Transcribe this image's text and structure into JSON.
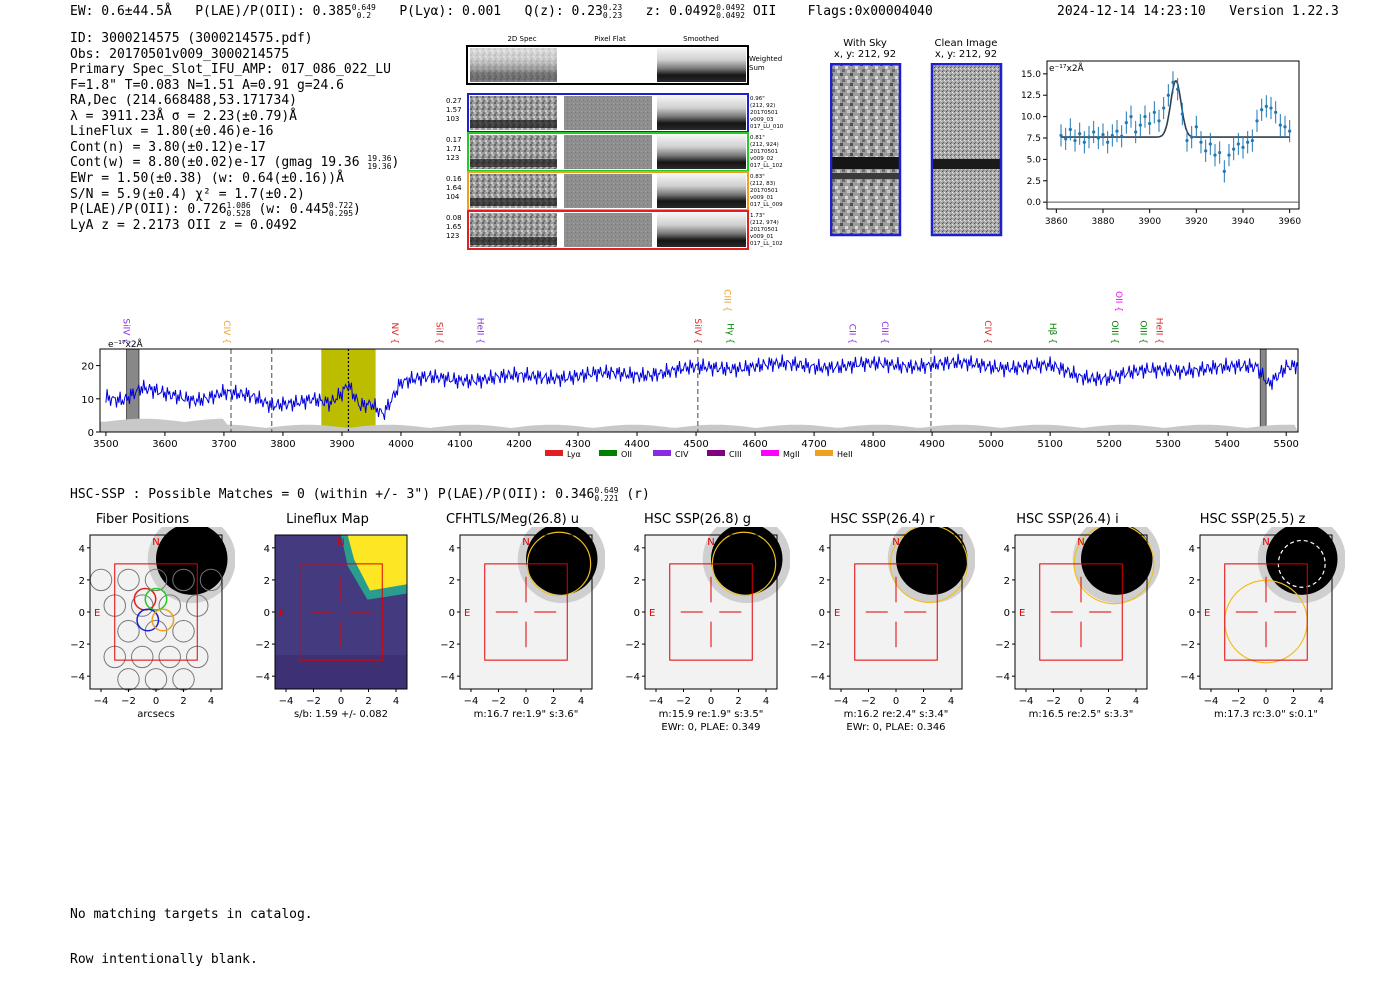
{
  "header": {
    "ew": "EW: 0.6±44.5Å",
    "plae_label": "P(LAE)/P(OII): 0.385",
    "plae_hi": "0.649",
    "plae_lo": "0.2",
    "plya": "P(Lyα): 0.001",
    "qz_label": "Q(z): 0.23",
    "qz_hi": "0.23",
    "qz_lo": "0.23",
    "z_label": "z: 0.0492",
    "z_hi": "0.0492",
    "z_lo": "0.0492",
    "z_line": "OII",
    "flags": "Flags:0x00004040",
    "timestamp": "2024-12-14 14:23:10",
    "version": "Version 1.22.3"
  },
  "info": {
    "id": "ID: 3000214575 (3000214575.pdf)",
    "obs": "Obs: 20170501v009_3000214575",
    "primary": "Primary Spec_Slot_IFU_AMP: 017_086_022_LU",
    "params": "F=1.8\"  T=0.083  N=1.51  A=0.91  g=24.6",
    "radec": "RA,Dec (214.668488,53.171734)",
    "lambda": "λ = 3911.23Å  σ = 2.23(±0.79)Å",
    "lineflux": "LineFlux = 1.80(±0.46)e-16",
    "contn": "Cont(n) = 3.80(±0.12)e-17",
    "contw": "Cont(w) = 8.80(±0.02)e-17 (gmag 19.36",
    "gmag_hi": "19.36",
    "gmag_lo": "19.36",
    "ewr": "EWr = 1.50(±0.38) (w: 0.64(±0.16))Å",
    "sn": "S/N = 5.9(±0.4)  χ² = 1.7(±0.2)",
    "plae": "P(LAE)/P(OII): 0.726",
    "plae_hi": "1.086",
    "plae_lo": "0.528",
    "plae_w": "(w: 0.445",
    "plae_w_hi": "0.722",
    "plae_w_lo": "0.295",
    "lyaz": "LyA z = 2.2173  OII z = 0.0492"
  },
  "cutouts": {
    "col_titles": [
      "2D Spec",
      "Pixel Flat",
      "Smoothed"
    ],
    "weighted": "Weighted Sum",
    "rows": [
      {
        "left": [
          "0.27",
          "1.57",
          "103"
        ],
        "right": [
          "0.96\"",
          "(212, 92)",
          "20170501",
          "v009_03",
          "017_LU_010"
        ],
        "color": "#1f1fcf"
      },
      {
        "left": [
          "0.17",
          "1.71",
          "123"
        ],
        "right": [
          "0.81\"",
          "(212, 924)",
          "20170501",
          "v009_02",
          "017_LL_102"
        ],
        "color": "#22cc22"
      },
      {
        "left": [
          "0.16",
          "1.64",
          "104"
        ],
        "right": [
          "0.83\"",
          "(212, 83)",
          "20170501",
          "v009_01",
          "017_LL_009"
        ],
        "color": "#f0a020"
      },
      {
        "left": [
          "0.08",
          "1.65",
          "123"
        ],
        "right": [
          "1.73\"",
          "(212, 974)",
          "20170501",
          "v009_01",
          "017_LL_102"
        ],
        "color": "#e02020"
      }
    ],
    "with_sky": "With Sky",
    "with_sky_xy": "x, y: 212, 92",
    "clean": "Clean Image",
    "clean_xy": "x, y: 212, 92"
  },
  "zoom_chart": {
    "ylabel": "e⁻¹⁷x2Å",
    "xticks": [
      "3860",
      "3880",
      "3900",
      "3920",
      "3940",
      "3960"
    ],
    "yticks": [
      "0.0",
      "2.5",
      "5.0",
      "7.5",
      "10.0",
      "12.5",
      "15.0"
    ]
  },
  "chart_data": [
    {
      "type": "scatter",
      "title": "",
      "xlabel": "",
      "ylabel": "e⁻¹⁷x2Å",
      "xlim": [
        3856,
        3964
      ],
      "ylim": [
        -0.8,
        16.5
      ],
      "points": [
        [
          3862,
          7.8
        ],
        [
          3864,
          7.4
        ],
        [
          3866,
          8.5
        ],
        [
          3868,
          7.2
        ],
        [
          3870,
          8.0
        ],
        [
          3872,
          7.0
        ],
        [
          3874,
          7.6
        ],
        [
          3876,
          8.2
        ],
        [
          3878,
          7.5
        ],
        [
          3880,
          7.9
        ],
        [
          3882,
          7.0
        ],
        [
          3884,
          7.8
        ],
        [
          3886,
          8.3
        ],
        [
          3888,
          7.7
        ],
        [
          3890,
          9.3
        ],
        [
          3892,
          10.0
        ],
        [
          3894,
          8.2
        ],
        [
          3896,
          9.0
        ],
        [
          3898,
          10.0
        ],
        [
          3900,
          9.2
        ],
        [
          3902,
          10.5
        ],
        [
          3904,
          9.5
        ],
        [
          3906,
          11.0
        ],
        [
          3908,
          12.5
        ],
        [
          3910,
          14.0
        ],
        [
          3912,
          13.2
        ],
        [
          3914,
          10.3
        ],
        [
          3916,
          7.2
        ],
        [
          3918,
          7.6
        ],
        [
          3920,
          8.8
        ],
        [
          3922,
          7.0
        ],
        [
          3924,
          6.0
        ],
        [
          3926,
          6.8
        ],
        [
          3928,
          5.5
        ],
        [
          3930,
          5.8
        ],
        [
          3932,
          3.6
        ],
        [
          3934,
          5.5
        ],
        [
          3936,
          6.2
        ],
        [
          3938,
          6.8
        ],
        [
          3940,
          6.4
        ],
        [
          3942,
          7.0
        ],
        [
          3944,
          7.2
        ],
        [
          3946,
          9.5
        ],
        [
          3948,
          10.8
        ],
        [
          3950,
          11.2
        ],
        [
          3952,
          11.0
        ],
        [
          3954,
          10.5
        ],
        [
          3956,
          9.0
        ],
        [
          3958,
          8.8
        ],
        [
          3960,
          8.3
        ]
      ],
      "fit": {
        "center": 3911.23,
        "sigma": 2.23,
        "continuum": 7.6,
        "peak": 14.2
      },
      "xticks": [
        3860,
        3880,
        3900,
        3920,
        3940,
        3960
      ],
      "yticks": [
        0.0,
        2.5,
        5.0,
        7.5,
        10.0,
        12.5,
        15.0
      ]
    },
    {
      "type": "line",
      "title": "",
      "ylabel": "e⁻¹⁷x2Å",
      "xlim": [
        3490,
        5520
      ],
      "ylim": [
        0,
        25
      ],
      "xticks": [
        3500,
        3600,
        3700,
        3800,
        3900,
        4000,
        4100,
        4200,
        4300,
        4400,
        4500,
        4600,
        4700,
        4800,
        4900,
        5000,
        5100,
        5200,
        5300,
        5400,
        5500
      ],
      "yticks": [
        0,
        10,
        20
      ],
      "spectrum_anchors": [
        [
          3500,
          11
        ],
        [
          3530,
          10
        ],
        [
          3560,
          13
        ],
        [
          3600,
          11
        ],
        [
          3650,
          10
        ],
        [
          3700,
          12
        ],
        [
          3750,
          10
        ],
        [
          3780,
          8
        ],
        [
          3800,
          9
        ],
        [
          3850,
          10
        ],
        [
          3880,
          8
        ],
        [
          3900,
          11
        ],
        [
          3910,
          14
        ],
        [
          3930,
          8
        ],
        [
          3950,
          9
        ],
        [
          3970,
          6
        ],
        [
          4000,
          15
        ],
        [
          4050,
          16
        ],
        [
          4100,
          16
        ],
        [
          4200,
          16.5
        ],
        [
          4300,
          17
        ],
        [
          4400,
          17.5
        ],
        [
          4500,
          19
        ],
        [
          4600,
          20
        ],
        [
          4700,
          20
        ],
        [
          4800,
          20
        ],
        [
          4900,
          20.5
        ],
        [
          5000,
          20
        ],
        [
          5100,
          19.5
        ],
        [
          5150,
          17
        ],
        [
          5200,
          16.5
        ],
        [
          5300,
          19
        ],
        [
          5400,
          19
        ],
        [
          5450,
          20
        ],
        [
          5470,
          15
        ],
        [
          5500,
          20
        ],
        [
          5520,
          20
        ]
      ],
      "highlight_band": [
        3865,
        3957
      ],
      "dashed_lines": [
        3712,
        3781,
        3911,
        4503,
        4898
      ],
      "masked_bands": [
        [
          3535,
          3556
        ],
        [
          5456,
          5466
        ]
      ],
      "line_markers": [
        {
          "label": "SiIV",
          "x": 3530,
          "color": "#8a2be2",
          "row": 0
        },
        {
          "label": "CIV",
          "x": 3700,
          "color": "#f0a020",
          "row": 0
        },
        {
          "label": "NV",
          "x": 3985,
          "color": "#e02020",
          "row": 0
        },
        {
          "label": "SiII",
          "x": 4060,
          "color": "#e02020",
          "row": 0
        },
        {
          "label": "HeII",
          "x": 4130,
          "color": "#8a2be2",
          "row": 0
        },
        {
          "label": "CIII",
          "x": 4548,
          "color": "#f0a020",
          "row": 1
        },
        {
          "label": "SiIV",
          "x": 4498,
          "color": "#e02020",
          "row": 0
        },
        {
          "label": "Hγ",
          "x": 4553,
          "color": "#008000",
          "row": 0
        },
        {
          "label": "CII",
          "x": 4760,
          "color": "#8a2be2",
          "row": 0
        },
        {
          "label": "CIII",
          "x": 4815,
          "color": "#8a2be2",
          "row": 0
        },
        {
          "label": "CIV",
          "x": 4990,
          "color": "#e02020",
          "row": 0
        },
        {
          "label": "Hβ",
          "x": 5100,
          "color": "#008000",
          "row": 0
        },
        {
          "label": "OII",
          "x": 5212,
          "color": "#ff00ff",
          "row": 1
        },
        {
          "label": "OIII",
          "x": 5205,
          "color": "#008000",
          "row": 0
        },
        {
          "label": "OIII",
          "x": 5253,
          "color": "#008000",
          "row": 0
        },
        {
          "label": "HeII",
          "x": 5280,
          "color": "#e02020",
          "row": 0
        }
      ],
      "legend": [
        {
          "label": "Lyα",
          "color": "#e02020"
        },
        {
          "label": "OII",
          "color": "#008000"
        },
        {
          "label": "CIV",
          "color": "#8a2be2"
        },
        {
          "label": "CIII",
          "color": "#800080"
        },
        {
          "label": "MgII",
          "color": "#ff00ff"
        },
        {
          "label": "HeII",
          "color": "#f0a020"
        }
      ]
    }
  ],
  "hsc_header": {
    "text": "HSC-SSP : Possible Matches = 0 (within +/- 3\")  P(LAE)/P(OII): 0.346",
    "hi": "0.649",
    "lo": "0.221",
    "band": "(r)"
  },
  "panels": [
    {
      "title": "Fiber Positions",
      "caption1": "arcsecs",
      "caption2": ""
    },
    {
      "title": "Lineflux Map",
      "caption1": "s/b: 1.59 +/- 0.082",
      "caption2": ""
    },
    {
      "title": "CFHTLS/Meg(26.8) u",
      "caption1": "m:16.7  re:1.9\"  s:3.6\"",
      "caption2": ""
    },
    {
      "title": "HSC SSP(26.8) g",
      "caption1": "m:15.9  re:1.9\"  s:3.5\"",
      "caption2": "EWr: 0, PLAE: 0.349"
    },
    {
      "title": "HSC SSP(26.4) r",
      "caption1": "m:16.2  re:2.4\"  s:3.4\"",
      "caption2": "EWr: 0, PLAE: 0.346"
    },
    {
      "title": "HSC SSP(26.4) i",
      "caption1": "m:16.5  re:2.5\"  s:3.3\"",
      "caption2": ""
    },
    {
      "title": "HSC SSP(25.5) z",
      "caption1": "m:17.3  rc:3.0\"  s:0.1\"",
      "caption2": ""
    }
  ],
  "panel_axis": {
    "ticks": [
      "4",
      "2",
      "0",
      "−2",
      "−4"
    ],
    "xticks": [
      "−4",
      "−2",
      "0",
      "2",
      "4"
    ],
    "north": "N",
    "east": "E"
  },
  "bottom_note": {
    "line1": "No matching targets in catalog.",
    "line2": "Row intentionally blank."
  }
}
